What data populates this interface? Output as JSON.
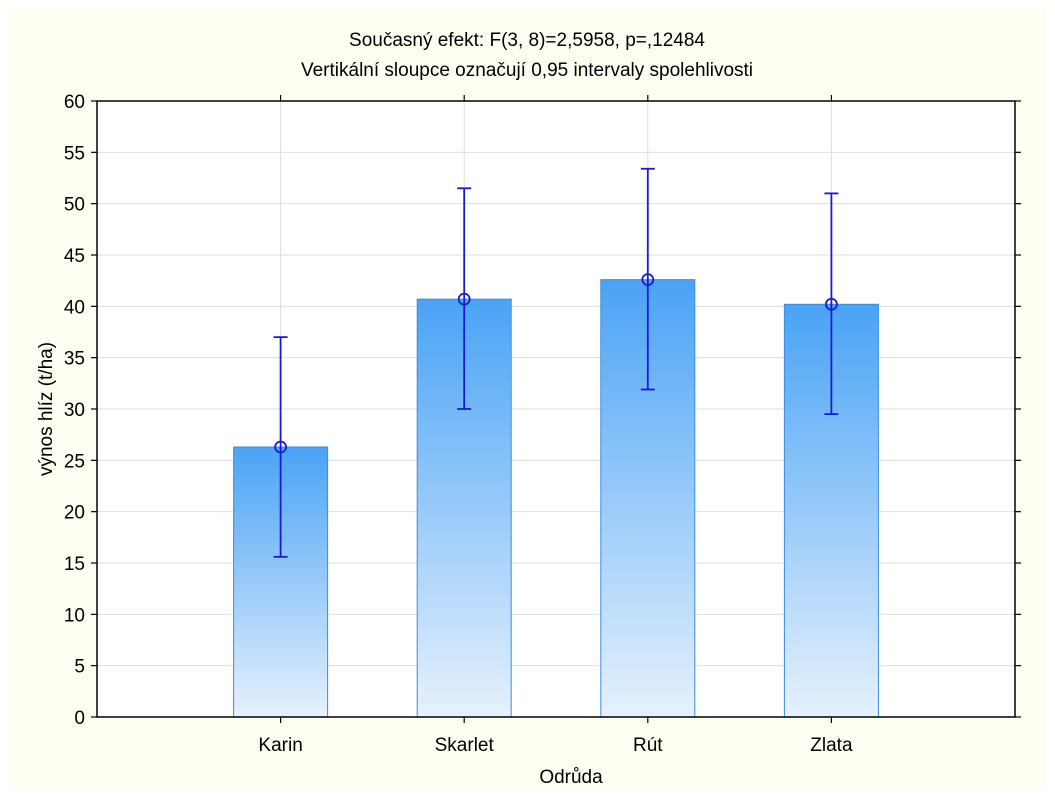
{
  "chart_data": {
    "type": "bar",
    "title": "Současný efekt: F(3, 8)=2,5958, p=,12484",
    "subtitle": "Vertikální sloupce označují 0,95 intervaly spolehlivosti",
    "xlabel": "Odrůda",
    "ylabel": "výnos hlíz (t/ha)",
    "categories": [
      "Karin",
      "Skarlet",
      "Rút",
      "Zlata"
    ],
    "values": [
      26.3,
      40.7,
      42.6,
      40.2
    ],
    "ci_lower": [
      15.6,
      30.0,
      31.9,
      29.5
    ],
    "ci_upper": [
      37.0,
      51.5,
      53.4,
      51.0
    ],
    "ylim": [
      0,
      60
    ],
    "yticks": [
      0,
      5,
      10,
      15,
      20,
      25,
      30,
      35,
      40,
      45,
      50,
      55,
      60
    ],
    "grid": true,
    "legend": "none",
    "colors": {
      "frame_background": "#fffef2",
      "plot_background": "#ffffff",
      "bar_top": "#4aa3f5",
      "bar_bottom": "#e6f1fd",
      "bar_edge": "#3a8ee0",
      "error_bar": "#1a1ad6",
      "grid": "#dedede",
      "axis": "#000000"
    }
  }
}
